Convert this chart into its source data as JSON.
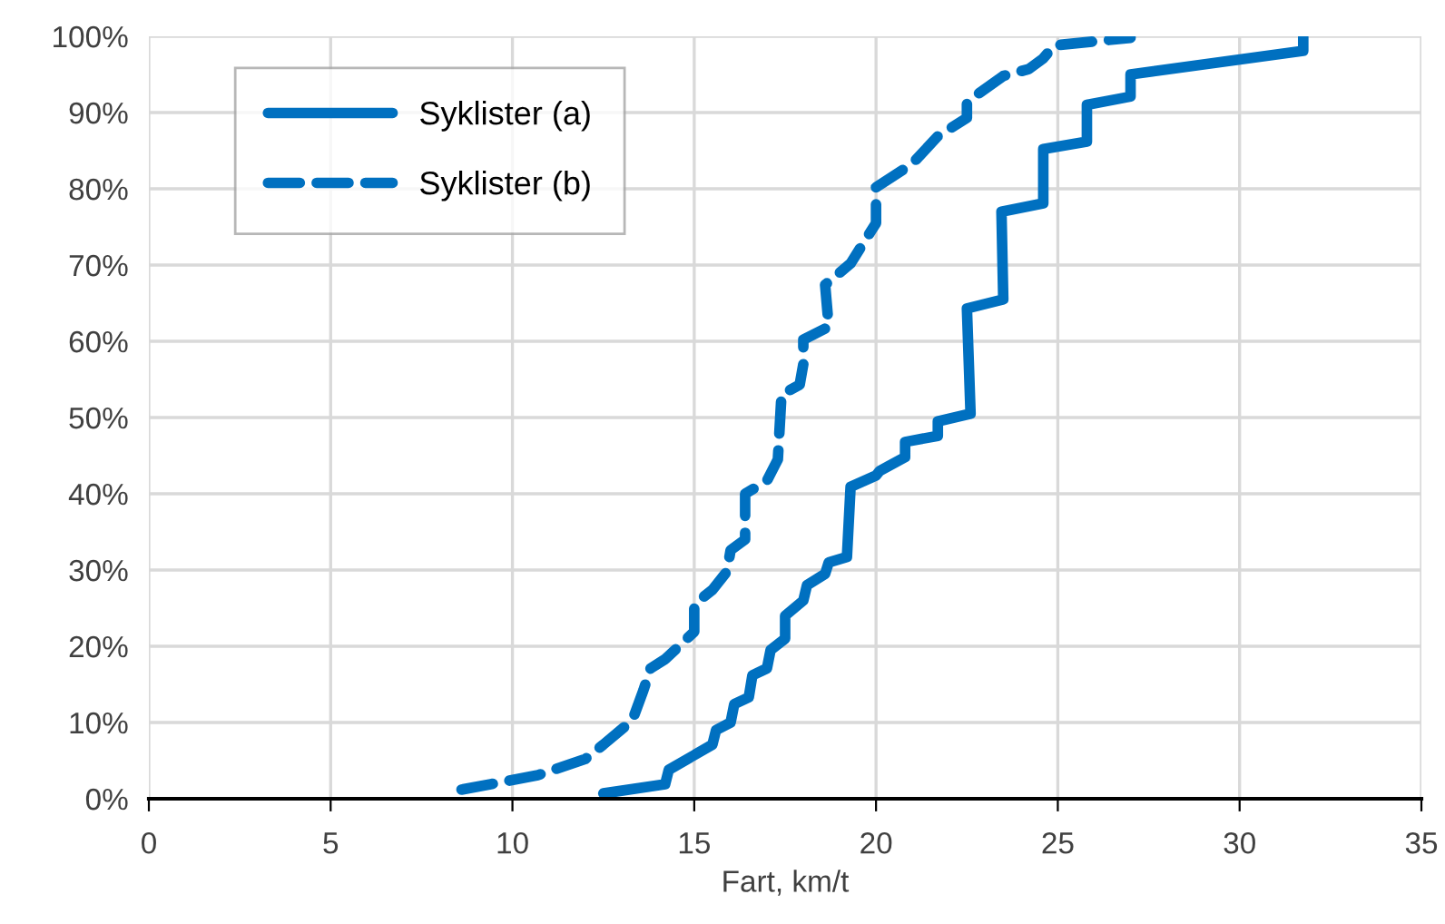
{
  "chart_data": {
    "type": "line",
    "xlabel": "Fart, km/t",
    "xlim": [
      0,
      35
    ],
    "xticks": [
      0,
      5,
      10,
      15,
      20,
      25,
      30,
      35
    ],
    "ylim": [
      0,
      100
    ],
    "yticks": [
      {
        "value": 0,
        "label": "0%"
      },
      {
        "value": 10,
        "label": "10%"
      },
      {
        "value": 20,
        "label": "20%"
      },
      {
        "value": 30,
        "label": "30%"
      },
      {
        "value": 40,
        "label": "40%"
      },
      {
        "value": 50,
        "label": "50%"
      },
      {
        "value": 60,
        "label": "60%"
      },
      {
        "value": 70,
        "label": "70%"
      },
      {
        "value": 80,
        "label": "80%"
      },
      {
        "value": 90,
        "label": "90%"
      },
      {
        "value": 100,
        "label": "100%"
      }
    ],
    "grid": true,
    "legend": "top left",
    "marker": "none",
    "series": [
      {
        "name": "Syklister (a)",
        "color": "#0070c0",
        "line_style": "solid",
        "x": [
          12.5,
          14.2,
          14.3,
          15.5,
          15.6,
          16.0,
          16.1,
          16.5,
          16.6,
          17.0,
          17.1,
          17.5,
          17.5,
          18.0,
          18.1,
          18.6,
          18.7,
          19.2,
          19.3,
          20.0,
          20.1,
          20.8,
          20.8,
          21.7,
          21.7,
          22.6,
          22.5,
          23.5,
          23.45,
          24.6,
          24.6,
          25.8,
          25.8,
          27.0,
          27.0,
          31.75,
          31.75
        ],
        "values": [
          0.7,
          1.9,
          3.8,
          7.1,
          9,
          10,
          12.4,
          13.3,
          16.2,
          17.1,
          19.5,
          21,
          24,
          26,
          28,
          29.5,
          31,
          31.7,
          40.9,
          42.4,
          43,
          44.8,
          46.8,
          47.6,
          49.5,
          50.5,
          64.3,
          65.5,
          77,
          78.1,
          85.2,
          86.2,
          91,
          92.1,
          95,
          98.1,
          99.9
        ]
      },
      {
        "name": "Syklister (b)",
        "color": "#0070c0",
        "line_style": "dashed",
        "x": [
          8.6,
          9.4,
          10.7,
          12.0,
          12.5,
          13.3,
          13.6,
          13.8,
          14.2,
          15.0,
          15.0,
          15.5,
          15.9,
          16.0,
          16.4,
          16.4,
          17.0,
          17.3,
          17.4,
          17.9,
          18.0,
          18.0,
          18.7,
          18.6,
          19.3,
          20.0,
          20.0,
          21.0,
          21.7,
          22.5,
          22.5,
          23.5,
          24.2,
          24.6,
          24.9,
          27.0
        ],
        "values": [
          1.2,
          1.9,
          3.1,
          5.2,
          7.1,
          10.3,
          14.2,
          17.1,
          18.3,
          21.9,
          25.5,
          27.4,
          29.8,
          32.6,
          34,
          40,
          41.7,
          44.5,
          53,
          54.3,
          57,
          60.2,
          61.9,
          67.4,
          70.2,
          75.5,
          80.2,
          83.3,
          86.9,
          89.3,
          91.4,
          94.8,
          95.7,
          97.1,
          98.8,
          99.8
        ]
      }
    ]
  }
}
